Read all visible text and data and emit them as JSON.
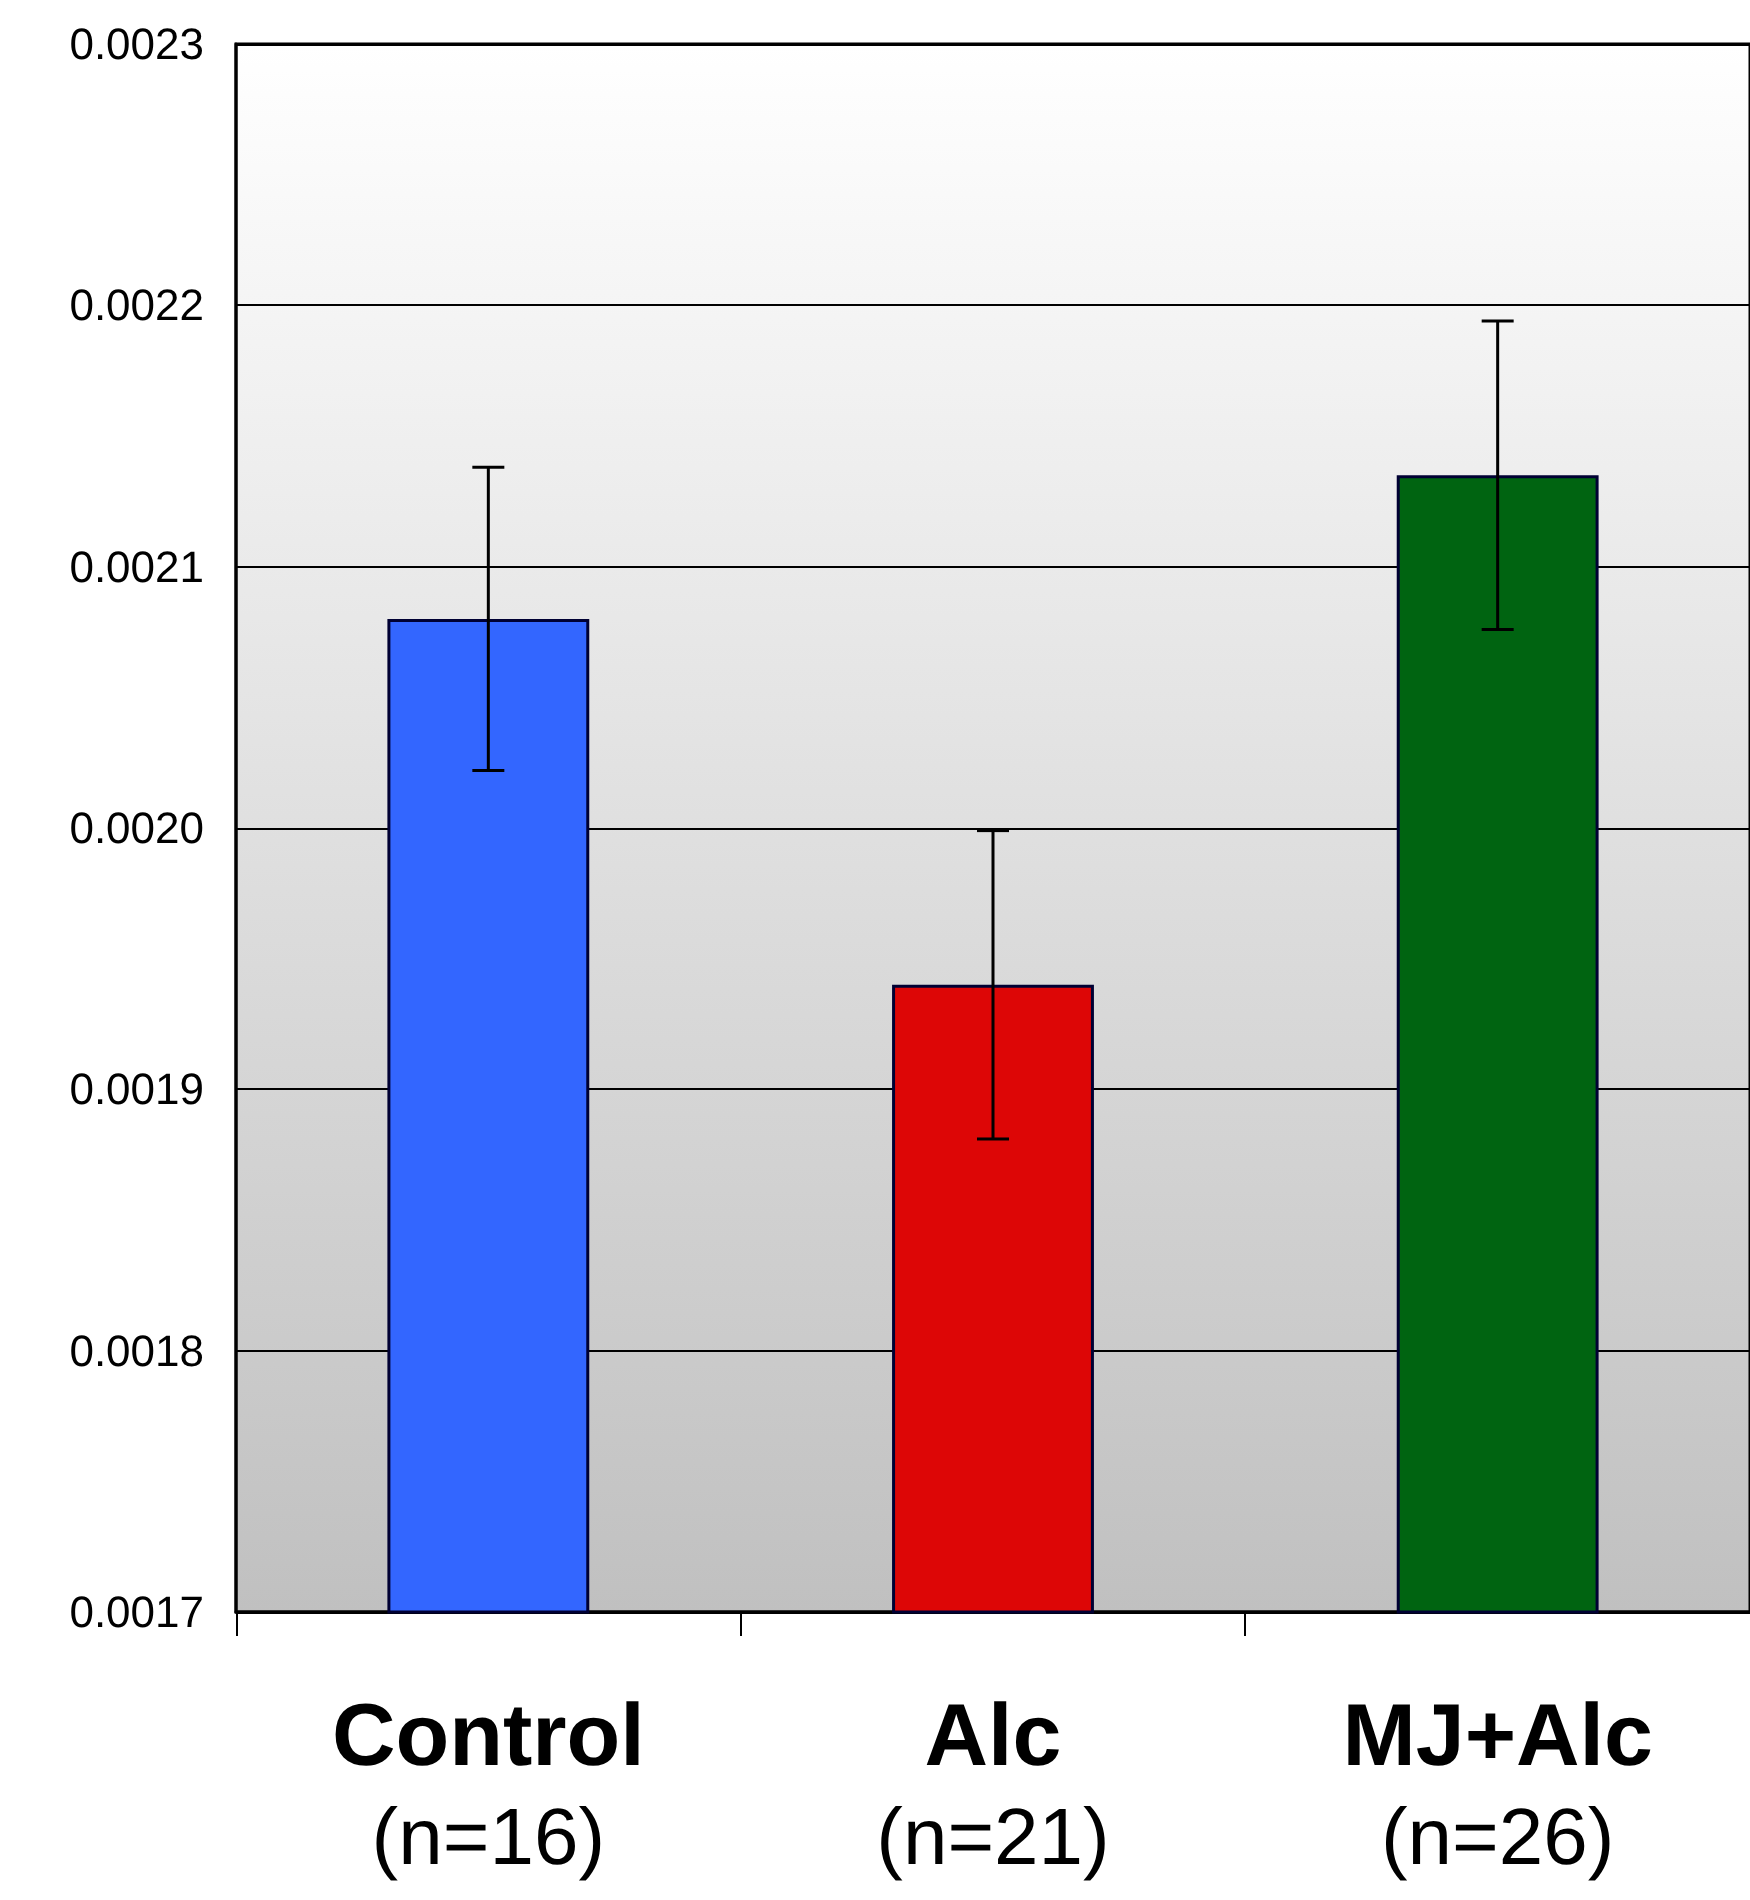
{
  "chart_data": {
    "type": "bar",
    "categories": [
      "Control\n(n=16)",
      "Alc\n(n=21)",
      "MJ+Alc\n(n=26)"
    ],
    "values": [
      0.00208,
      0.00194,
      0.002135
    ],
    "colors": [
      "#3366ff",
      "#dd0606",
      "#006411"
    ],
    "errors": [
      5.8e-05,
      5.9e-05,
      5.9e-05
    ],
    "ylim": [
      0.0017,
      0.0023
    ],
    "yticks": [
      0.0023,
      0.0022,
      0.0021,
      {
        "value": 0.002,
        "label": "0.0020"
      },
      0.0019,
      0.0018,
      0.0017
    ],
    "grid": "y"
  }
}
